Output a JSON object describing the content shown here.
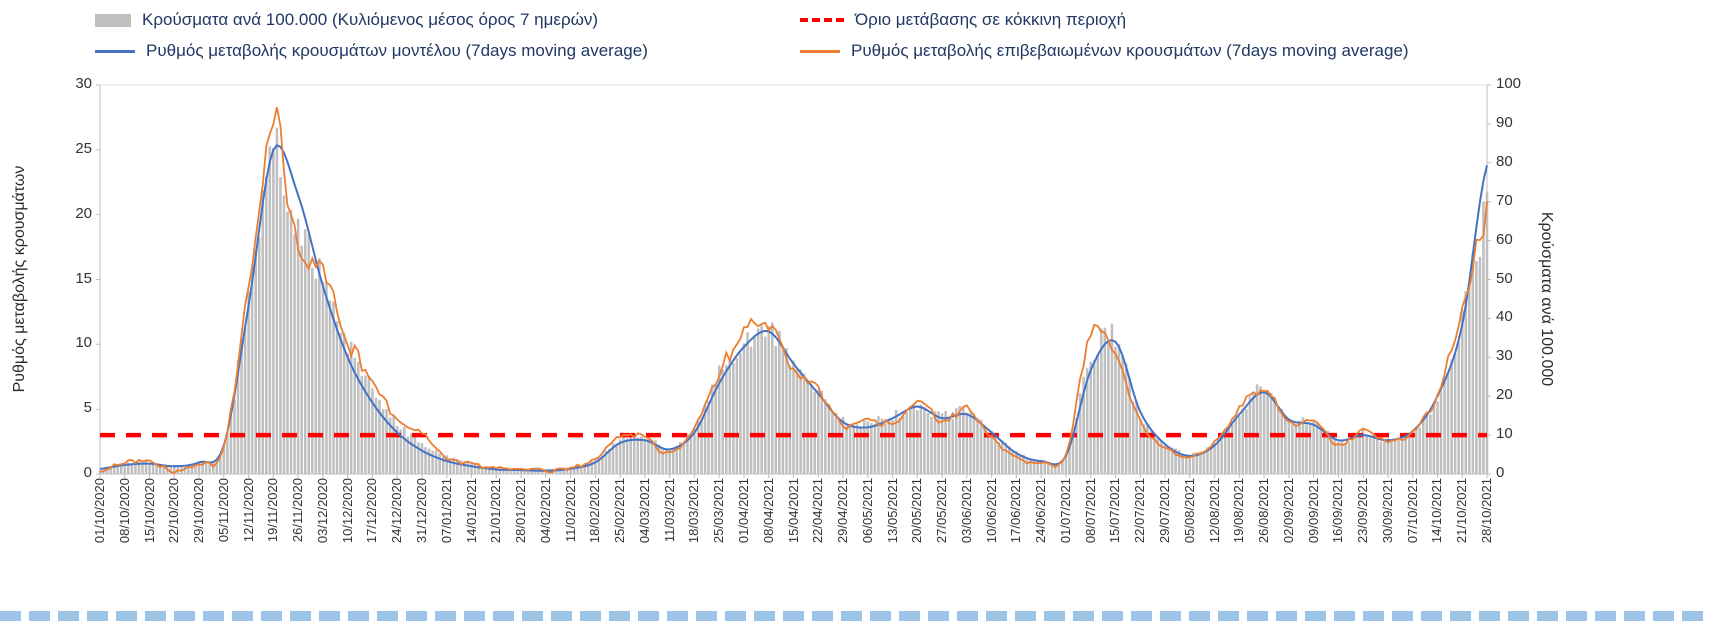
{
  "legend": {
    "bars_label": "Κρούσματα ανά 100.000 (Κυλιόμενος μέσος όρος 7 ημερών)",
    "threshold_label": "Όριο μετάβασης σε κόκκινη περιοχή",
    "model_label": "Ρυθμός μεταβολής κρουσμάτων μοντέλου (7days moving average)",
    "confirmed_label": "Ρυθμός μεταβολής επιβεβαιωμένων κρουσμάτων (7days moving average)"
  },
  "axes": {
    "left_title": "Ρυθμός μεταβολής κρουσμάτων",
    "right_title": "Κρούσματα ανά 100.000",
    "left_ticks": [
      0,
      5,
      10,
      15,
      20,
      25,
      30
    ],
    "right_ticks": [
      0,
      10,
      20,
      30,
      40,
      50,
      60,
      70,
      80,
      90,
      100
    ]
  },
  "colors": {
    "model_line": "#4472C4",
    "confirmed_line": "#ED7D31",
    "bars": "#BFBFBF",
    "threshold": "#FF0000",
    "legend_text": "#203864",
    "axis_line": "#BFBFBF"
  },
  "chart_data": {
    "type": "combo (daily bars + two 7-day moving-average lines + dashed threshold line)",
    "legend_position": "top",
    "grid": "off",
    "left_range": [
      0,
      30
    ],
    "right_range": [
      0,
      100
    ],
    "categories": [
      "01/10/2020",
      "08/10/2020",
      "15/10/2020",
      "22/10/2020",
      "29/10/2020",
      "05/11/2020",
      "12/11/2020",
      "19/11/2020",
      "26/11/2020",
      "03/12/2020",
      "10/12/2020",
      "17/12/2020",
      "24/12/2020",
      "31/12/2020",
      "07/01/2021",
      "14/01/2021",
      "21/01/2021",
      "28/01/2021",
      "04/02/2021",
      "11/02/2021",
      "18/02/2021",
      "25/02/2021",
      "04/03/2021",
      "11/03/2021",
      "18/03/2021",
      "25/03/2021",
      "01/04/2021",
      "08/04/2021",
      "15/04/2021",
      "22/04/2021",
      "29/04/2021",
      "06/05/2021",
      "13/05/2021",
      "20/05/2021",
      "27/05/2021",
      "03/06/2021",
      "10/06/2021",
      "17/06/2021",
      "24/06/2021",
      "01/07/2021",
      "08/07/2021",
      "15/07/2021",
      "22/07/2021",
      "29/07/2021",
      "05/08/2021",
      "12/08/2021",
      "19/08/2021",
      "26/08/2021",
      "02/09/2021",
      "09/09/2021",
      "16/09/2021",
      "23/09/2021",
      "30/09/2021",
      "07/10/2021",
      "14/10/2021",
      "21/10/2021",
      "28/10/2021"
    ],
    "series": [
      {
        "name": "Ρυθμός μεταβολής κρουσμάτων μοντέλου (7days moving average)",
        "type": "line",
        "axis": "left",
        "color": "#4472C4",
        "values": [
          0.4,
          0.7,
          0.8,
          0.6,
          0.9,
          2.2,
          13,
          25,
          21.5,
          14.5,
          9,
          5.5,
          3.2,
          1.8,
          1,
          0.6,
          0.35,
          0.3,
          0.25,
          0.4,
          0.9,
          2.4,
          2.6,
          1.9,
          3.2,
          7,
          9.8,
          11,
          8.5,
          6.2,
          4,
          3.6,
          4.3,
          5.2,
          4.3,
          4.6,
          3.2,
          1.6,
          1,
          1.4,
          8,
          10.2,
          4.8,
          2.3,
          1.4,
          2.2,
          4.6,
          6.3,
          4.2,
          3.8,
          2.6,
          3,
          2.6,
          3.3,
          6,
          11.5,
          23.8
        ]
      },
      {
        "name": "Ρυθμός μεταβολής επιβεβαιωμένων κρουσμάτων (7days moving average)",
        "type": "line",
        "axis": "left",
        "color": "#ED7D31",
        "values": [
          0.3,
          0.9,
          1,
          0.2,
          0.8,
          2,
          14.5,
          27,
          17.2,
          15.8,
          10.5,
          7.2,
          4.2,
          3.2,
          1.2,
          0.8,
          0.4,
          0.5,
          0.3,
          0.5,
          1.2,
          2.9,
          2.8,
          1.6,
          3.6,
          7.8,
          10.8,
          11.3,
          8,
          6.6,
          3.8,
          4.2,
          4,
          5.5,
          4.1,
          5,
          2.8,
          1.3,
          0.9,
          1.6,
          10.5,
          9,
          4,
          2,
          1.3,
          2.4,
          5,
          6.5,
          4,
          4.2,
          2.2,
          3.3,
          2.5,
          3.3,
          6.2,
          12.5,
          20.3
        ]
      },
      {
        "name": "Κρούσματα ανά 100.000 (Κυλιόμενος μέσος όρος 7 ημερών)",
        "type": "bar",
        "axis": "right",
        "color": "#BFBFBF",
        "values": [
          1.2,
          2.6,
          3,
          2.2,
          3,
          7,
          45,
          82,
          62,
          52,
          34,
          22,
          13,
          8,
          4.5,
          2.6,
          1.6,
          1.3,
          1.2,
          1.8,
          3.6,
          9,
          9.5,
          6.5,
          12,
          26,
          34,
          37,
          28,
          21,
          13.5,
          13,
          15,
          17.5,
          15,
          16,
          10.5,
          5.5,
          3.5,
          5,
          30,
          35,
          15,
          8,
          5,
          8,
          16,
          22,
          14,
          13.5,
          8.5,
          10.5,
          8.5,
          11,
          20,
          40,
          67
        ]
      }
    ],
    "threshold": {
      "name": "Όριο μετάβασης σε κόκκινη περιοχή",
      "axis": "left",
      "value": 3,
      "color": "#FF0000",
      "style": "dashed"
    }
  }
}
